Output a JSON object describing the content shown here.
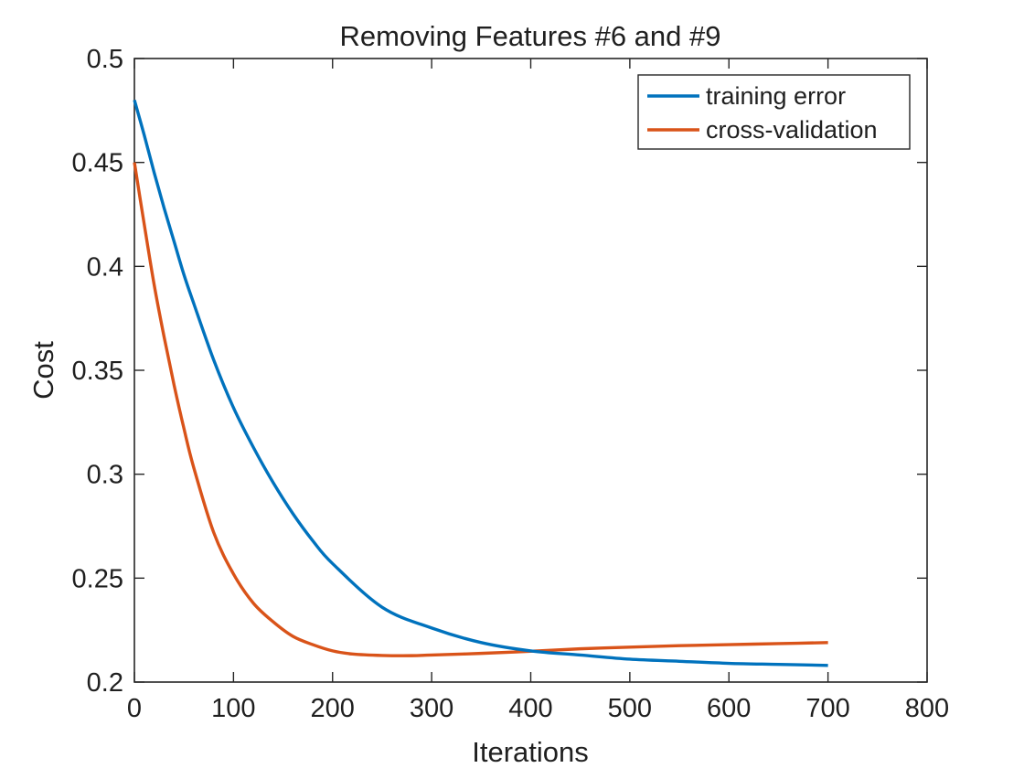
{
  "chart_data": {
    "type": "line",
    "title": "Removing Features #6 and #9",
    "xlabel": "Iterations",
    "ylabel": "Cost",
    "xlim": [
      0,
      800
    ],
    "ylim": [
      0.2,
      0.5
    ],
    "xticks": [
      0,
      100,
      200,
      300,
      400,
      500,
      600,
      700,
      800
    ],
    "yticks": [
      0.2,
      0.25,
      0.3,
      0.35,
      0.4,
      0.45,
      0.5
    ],
    "xtick_labels": [
      "0",
      "100",
      "200",
      "300",
      "400",
      "500",
      "600",
      "700",
      "800"
    ],
    "ytick_labels": [
      "0.2",
      "0.25",
      "0.3",
      "0.35",
      "0.4",
      "0.45",
      "0.5"
    ],
    "grid": false,
    "legend_position": "top-right",
    "series": [
      {
        "name": "training error",
        "color": "#0072BD",
        "x": [
          0,
          10,
          20,
          30,
          40,
          50,
          60,
          80,
          100,
          120,
          140,
          160,
          180,
          200,
          250,
          300,
          350,
          400,
          450,
          500,
          550,
          600,
          650,
          700
        ],
        "y": [
          0.48,
          0.463,
          0.445,
          0.428,
          0.412,
          0.396,
          0.382,
          0.355,
          0.332,
          0.313,
          0.296,
          0.281,
          0.268,
          0.257,
          0.236,
          0.226,
          0.219,
          0.215,
          0.213,
          0.211,
          0.21,
          0.209,
          0.2085,
          0.208
        ]
      },
      {
        "name": "cross-validation",
        "color": "#D95319",
        "x": [
          0,
          10,
          20,
          30,
          40,
          50,
          60,
          80,
          100,
          120,
          140,
          160,
          180,
          200,
          220,
          250,
          280,
          300,
          350,
          400,
          450,
          500,
          550,
          600,
          650,
          700
        ],
        "y": [
          0.45,
          0.42,
          0.391,
          0.366,
          0.343,
          0.322,
          0.303,
          0.272,
          0.252,
          0.238,
          0.229,
          0.222,
          0.218,
          0.215,
          0.2135,
          0.2128,
          0.2127,
          0.213,
          0.2138,
          0.2148,
          0.216,
          0.2168,
          0.2175,
          0.218,
          0.2185,
          0.219
        ]
      }
    ]
  }
}
